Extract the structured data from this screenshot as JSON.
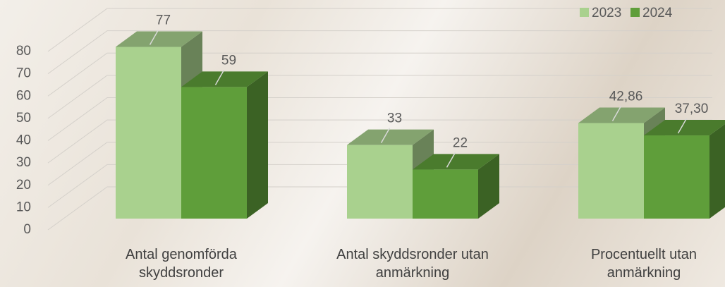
{
  "chart_data": {
    "type": "bar3d",
    "categories": [
      "Antal genomförda skyddsronder",
      "Antal skyddsronder utan anmärkning",
      "Procentuellt utan anmärkning"
    ],
    "series": [
      {
        "name": "2023",
        "color": "#a9d18e",
        "values": [
          77,
          33,
          42.86
        ],
        "value_labels": [
          "77",
          "33",
          "42,86"
        ]
      },
      {
        "name": "2024",
        "color": "#5f9e3a",
        "values": [
          59,
          22,
          37.3
        ],
        "value_labels": [
          "59",
          "22",
          "37,30"
        ]
      }
    ],
    "ylim": [
      0,
      80
    ],
    "yticks": [
      0,
      10,
      20,
      30,
      40,
      50,
      60,
      70,
      80
    ],
    "grid": true,
    "legend": "top-right"
  }
}
